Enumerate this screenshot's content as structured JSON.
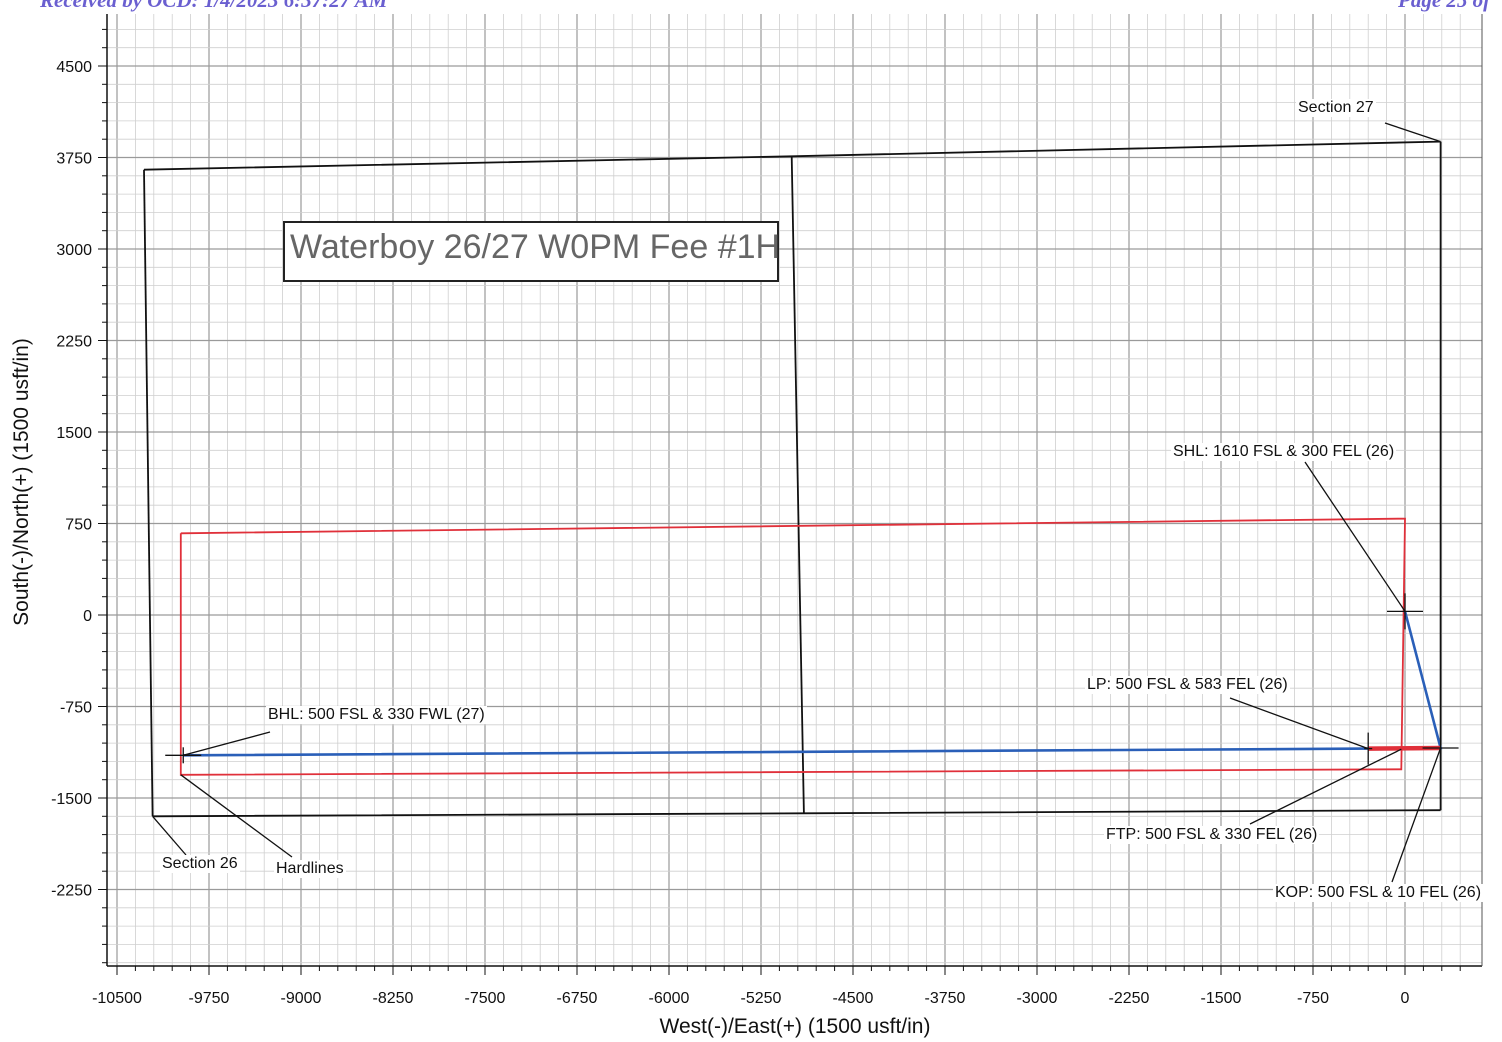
{
  "header": {
    "left": "Received by OCD: 1/4/2023 6:37:27 AM",
    "right": "Page 25 of"
  },
  "chart_data": {
    "type": "line",
    "title": "Waterboy 26/27 W0PM Fee #1H",
    "xlabel": "West(-)/East(+) (1500 usft/in)",
    "ylabel": "South(-)/North(+) (1500 usft/in)",
    "xlim": [
      -10500,
      200
    ],
    "ylim": [
      -3000,
      4800
    ],
    "xticks": [
      -10500,
      -9750,
      -9000,
      -8250,
      -7500,
      -6750,
      -6000,
      -5250,
      -4500,
      -3750,
      -3000,
      -2250,
      -1500,
      -750,
      0
    ],
    "yticks": [
      4500,
      3750,
      3000,
      2250,
      1500,
      750,
      0,
      -750,
      -1500,
      -2250
    ],
    "grid": true,
    "section_lines": [
      {
        "points": [
          [
            -10280,
            3650
          ],
          [
            -5000,
            3760
          ],
          [
            290,
            3880
          ]
        ]
      },
      {
        "points": [
          [
            -10280,
            3650
          ],
          [
            -10210,
            -1650
          ]
        ]
      },
      {
        "points": [
          [
            -10210,
            -1650
          ],
          [
            -4900,
            -1625
          ],
          [
            290,
            -1600
          ]
        ]
      },
      {
        "points": [
          [
            290,
            3880
          ],
          [
            290,
            -1600
          ]
        ]
      },
      {
        "points": [
          [
            -5000,
            3760
          ],
          [
            -4900,
            -1625
          ]
        ]
      }
    ],
    "hardlines": {
      "color": "#e0303a",
      "points": [
        [
          -9980,
          670
        ],
        [
          0,
          790
        ],
        [
          -30,
          -1265
        ],
        [
          -9980,
          -1310
        ],
        [
          -9980,
          670
        ]
      ]
    },
    "wellbore": {
      "color": "#2a5fb8",
      "points": [
        [
          0,
          30
        ],
        [
          290,
          -1090
        ],
        [
          -300,
          -1095
        ],
        [
          -9960,
          -1150
        ]
      ]
    },
    "lateral_segment": {
      "color": "#e0303a",
      "points": [
        [
          -300,
          -1095
        ],
        [
          290,
          -1090
        ]
      ]
    },
    "annotations": [
      {
        "label": "SHL: 1610 FSL & 300 FEL (26)",
        "point": [
          0,
          30
        ]
      },
      {
        "label": "LP: 500 FSL & 583 FEL (26)",
        "point": [
          -300,
          -1095
        ]
      },
      {
        "label": "FTP: 500 FSL & 330 FEL (26)",
        "point": [
          -30,
          -1100
        ]
      },
      {
        "label": "KOP: 500 FSL & 10 FEL (26)",
        "point": [
          290,
          -1090
        ]
      },
      {
        "label": "BHL: 500 FSL & 330 FWL (27)",
        "point": [
          -9960,
          -1150
        ]
      },
      {
        "label": "Section 27",
        "point": [
          290,
          3880
        ]
      },
      {
        "label": "Section 26",
        "point": [
          -10210,
          -1650
        ]
      },
      {
        "label": "Hardlines",
        "point": [
          -9980,
          -1310
        ]
      }
    ]
  }
}
